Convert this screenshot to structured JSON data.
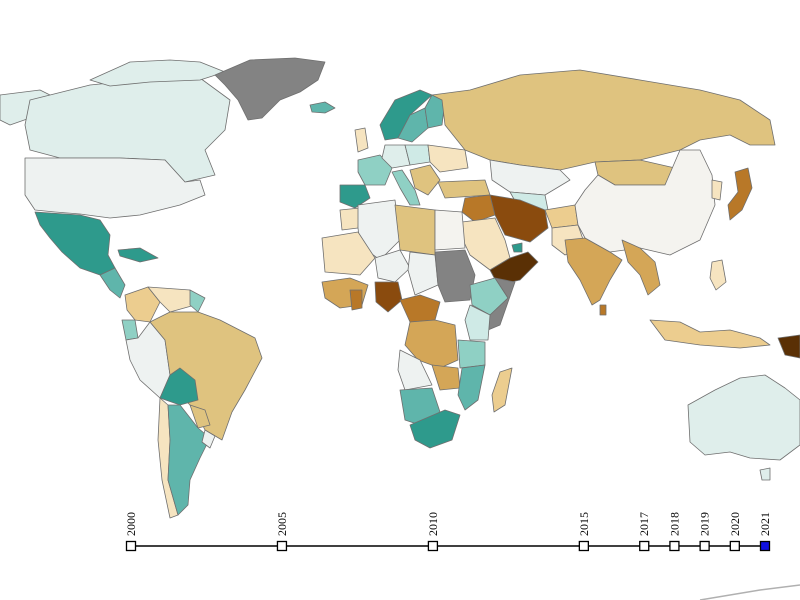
{
  "map": {
    "colors": {
      "no_data": "#838383",
      "teal_dark": "#2e9a8c",
      "teal_mid": "#5fb5ab",
      "teal_light": "#8fd0c4",
      "teal_pale": "#cfeae6",
      "neutral_pale": "#eef2f1",
      "neutral_offwhite": "#f4f3ef",
      "tan_pale": "#f6e4c0",
      "tan_light": "#eccd8f",
      "tan_mid": "#dfc37f",
      "tan_dark": "#d4a657",
      "brown_mid": "#b87828",
      "brown_dark": "#8a4b0e",
      "brown_darkest": "#5a3005",
      "border": "#6f6f6f"
    }
  },
  "timeline": {
    "years": [
      "2000",
      "2005",
      "2010",
      "2015",
      "2017",
      "2018",
      "2019",
      "2020",
      "2021"
    ],
    "selected": "2021",
    "selected_color": "#1010e0"
  }
}
